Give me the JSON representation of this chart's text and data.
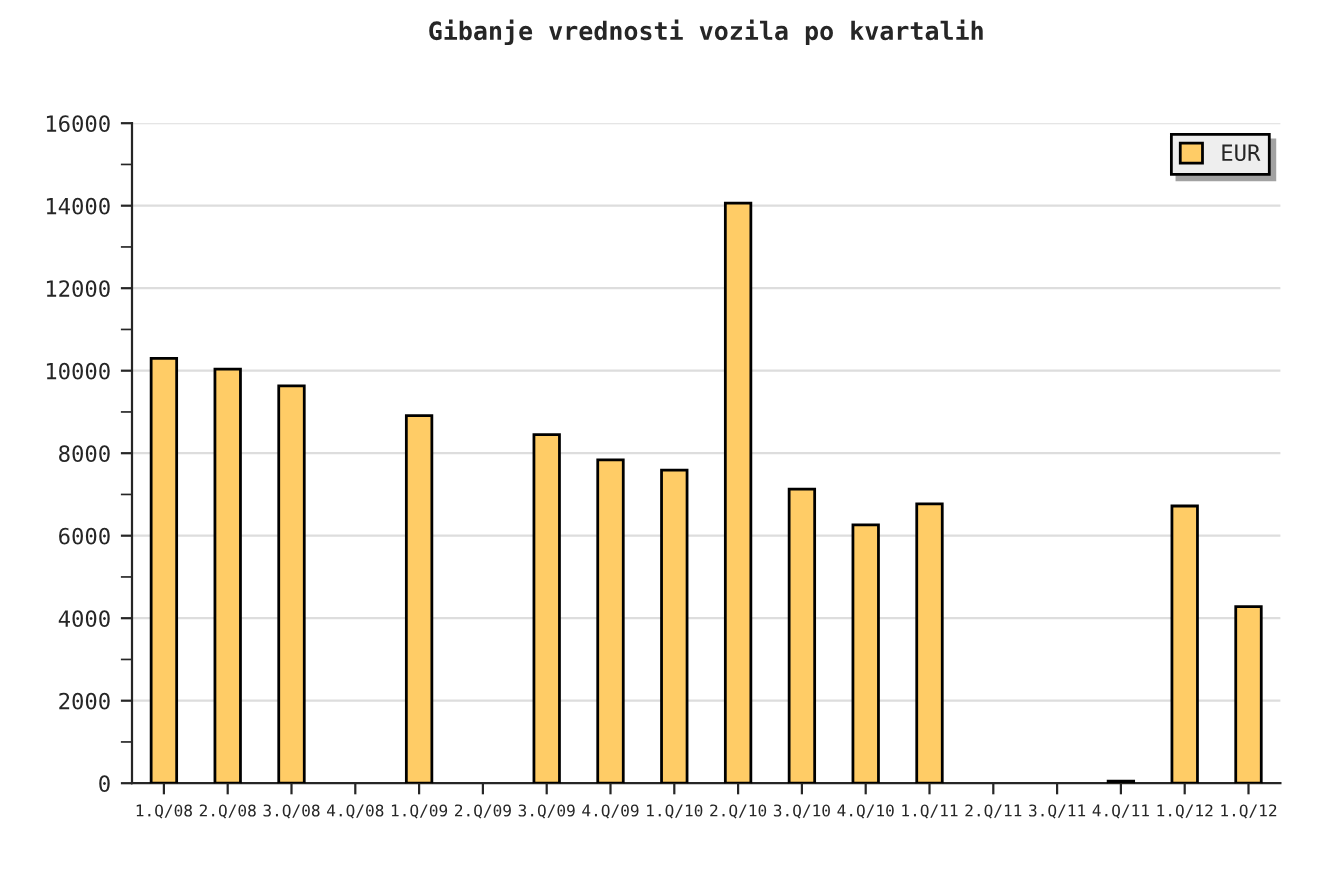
{
  "chart_data": {
    "type": "bar",
    "title": "Gibanje vrednosti vozila po kvartalih",
    "categories": [
      "1.Q/08",
      "2.Q/08",
      "3.Q/08",
      "4.Q/08",
      "1.Q/09",
      "2.Q/09",
      "3.Q/09",
      "4.Q/09",
      "1.Q/10",
      "2.Q/10",
      "3.Q/10",
      "4.Q/10",
      "1.Q/11",
      "2.Q/11",
      "3.Q/11",
      "4.Q/11",
      "1.Q/12",
      "1.Q/12"
    ],
    "series": [
      {
        "name": "EUR",
        "color": "#ffcc66",
        "values": [
          10300,
          10040,
          9630,
          null,
          8910,
          null,
          8450,
          7840,
          7590,
          14060,
          7130,
          6260,
          6770,
          null,
          null,
          50,
          6720,
          4280
        ]
      }
    ],
    "ylim": [
      0,
      16000
    ],
    "yticks": [
      0,
      2000,
      4000,
      6000,
      8000,
      10000,
      12000,
      14000,
      16000
    ],
    "grid": "y",
    "legend": "top right"
  }
}
